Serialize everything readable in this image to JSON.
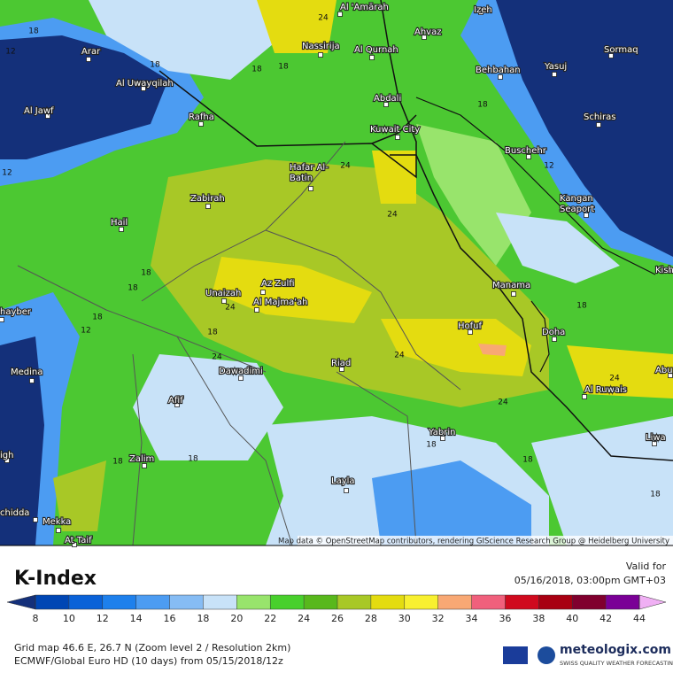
{
  "map": {
    "places": [
      {
        "name": "Al 'Amārah"
      },
      {
        "name": "Izeh"
      },
      {
        "name": "Nassirija"
      },
      {
        "name": "Al Qurnah"
      },
      {
        "name": "Ahvaz"
      },
      {
        "name": "Arar"
      },
      {
        "name": "Sormaq"
      },
      {
        "name": "Behbahan"
      },
      {
        "name": "Yasuj"
      },
      {
        "name": "Al Uwayqilah"
      },
      {
        "name": "Abdali"
      },
      {
        "name": "Al Jawf"
      },
      {
        "name": "Rafha"
      },
      {
        "name": "Schiras"
      },
      {
        "name": "Kuwait City"
      },
      {
        "name": "Buschehr"
      },
      {
        "name": [
          "Hafar Al-",
          "Batin"
        ]
      },
      {
        "name": "Zabirah"
      },
      {
        "name": [
          "Kangan",
          "Seaport"
        ]
      },
      {
        "name": "Hail"
      },
      {
        "name": "Manama"
      },
      {
        "name": "Unaizah"
      },
      {
        "name": "Az Zulfi"
      },
      {
        "name": "Al Majma'ah"
      },
      {
        "name": "Hofuf"
      },
      {
        "name": "Doha"
      },
      {
        "name": "Medina"
      },
      {
        "name": "Dawadimi"
      },
      {
        "name": "Riad"
      },
      {
        "name": "Al Ruwais"
      },
      {
        "name": "Afif"
      },
      {
        "name": "Yabrin"
      },
      {
        "name": "Liwa"
      },
      {
        "name": "Zalim"
      },
      {
        "name": "Layla"
      },
      {
        "name": "Mekka"
      },
      {
        "name": "At Taif"
      },
      {
        "name": "hayber"
      },
      {
        "name": "Kish"
      },
      {
        "name": "Abu"
      },
      {
        "name": "chidda"
      },
      {
        "name": "igh"
      }
    ],
    "contour_labels": [
      18,
      12,
      18,
      24,
      18,
      18,
      18,
      24,
      12,
      12,
      24,
      18,
      18,
      24,
      18,
      12,
      18,
      24,
      24,
      18,
      24,
      24,
      18,
      18,
      18,
      18,
      18
    ],
    "attribution": "Map data © OpenStreetMap contributors, rendering GIScience Research Group @ Heidelberg University"
  },
  "legend": {
    "title": "K-Index",
    "ticks": [
      8,
      10,
      12,
      14,
      16,
      18,
      20,
      22,
      24,
      26,
      28,
      30,
      32,
      34,
      36,
      38,
      40,
      42,
      44
    ],
    "colors": [
      "#14307a",
      "#0046b4",
      "#0a62d8",
      "#1e80ec",
      "#4c9cf2",
      "#86bcf4",
      "#c8e2f8",
      "#98e46c",
      "#48d02c",
      "#58b81c",
      "#a8c826",
      "#e4dc10",
      "#f8f030",
      "#f8a874",
      "#f0607c",
      "#d00a1e",
      "#a80012",
      "#80002e",
      "#7a0096",
      "#b23ade",
      "#e27af2",
      "#f0b0f4"
    ]
  },
  "footer": {
    "valid_label": "Valid for",
    "valid_time": "05/16/2018, 03:00pm GMT+03",
    "grid_info": "Grid map 46.6 E, 26.7 N (Zoom level 2 / Resolution 2km)",
    "model_info": "ECMWF/Global Euro HD (10 days) from 05/15/2018/12z",
    "brand": "meteologix.com",
    "tagline": "SWISS QUALITY WEATHER FORECASTING"
  }
}
